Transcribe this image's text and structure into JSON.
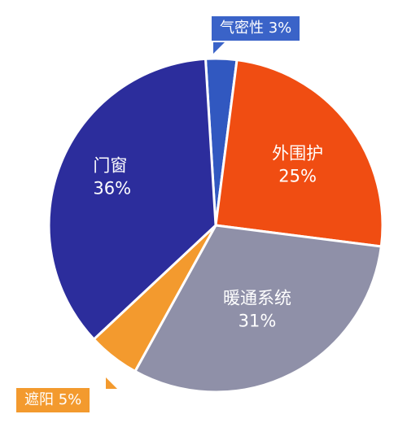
{
  "chart_data": {
    "type": "pie",
    "title": "",
    "slices": [
      {
        "label": "气密性",
        "value": 3,
        "value_label": "3%",
        "color": "#3158c0"
      },
      {
        "label": "外围护",
        "value": 25,
        "value_label": "25%",
        "color": "#f04d12"
      },
      {
        "label": "暖通系统",
        "value": 31,
        "value_label": "31%",
        "color": "#8f90a8"
      },
      {
        "label": "遮阳",
        "value": 5,
        "value_label": "5%",
        "color": "#f39a2e"
      },
      {
        "label": "门窗",
        "value": 36,
        "value_label": "36%",
        "color": "#2c2d9c"
      }
    ],
    "legend": "none"
  },
  "callouts": {
    "airtight": "气密性  3%",
    "shading": "遮阳  5%"
  }
}
